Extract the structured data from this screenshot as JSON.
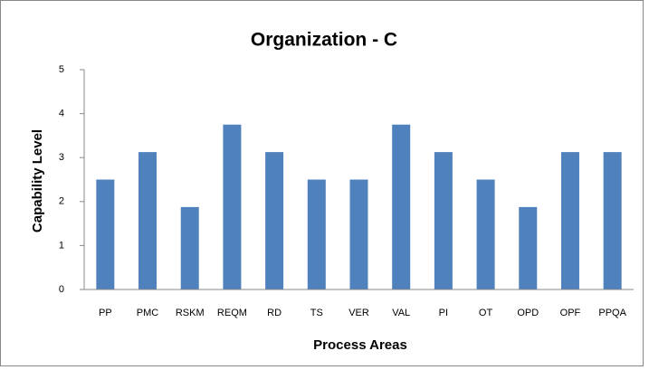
{
  "chart_data": {
    "type": "bar",
    "title": "Organization - C",
    "x_label": "Process Areas",
    "y_label": "Capability Level",
    "categories": [
      "PP",
      "PMC",
      "RSKM",
      "REQM",
      "RD",
      "TS",
      "VER",
      "VAL",
      "PI",
      "OT",
      "OPD",
      "OPF",
      "PPQA"
    ],
    "values": [
      2.5,
      3.125,
      1.875,
      3.75,
      3.125,
      2.5,
      2.5,
      3.75,
      3.125,
      2.5,
      1.875,
      3.125,
      3.125
    ],
    "color": "#4f81bd",
    "ylim": [
      0,
      5
    ],
    "yticks": [
      0,
      1,
      2,
      3,
      4,
      5
    ],
    "grid": false
  }
}
